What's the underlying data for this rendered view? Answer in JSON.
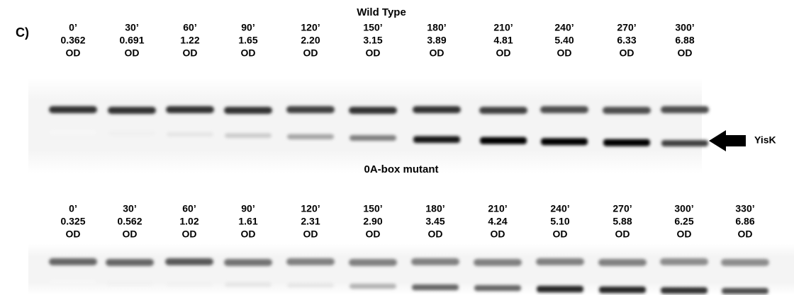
{
  "panel_label": "C)",
  "arrow_label": "YisK",
  "blots": [
    {
      "title": "Wild Type",
      "lanes": [
        {
          "time": "0’",
          "od": "0.362",
          "unit": "OD"
        },
        {
          "time": "30’",
          "od": "0.691",
          "unit": "OD"
        },
        {
          "time": "60’",
          "od": "1.22",
          "unit": "OD"
        },
        {
          "time": "90’",
          "od": "1.65",
          "unit": "OD"
        },
        {
          "time": "120’",
          "od": "2.20",
          "unit": "OD"
        },
        {
          "time": "150’",
          "od": "3.15",
          "unit": "OD"
        },
        {
          "time": "180’",
          "od": "3.89",
          "unit": "OD"
        },
        {
          "time": "210’",
          "od": "4.81",
          "unit": "OD"
        },
        {
          "time": "240’",
          "od": "5.40",
          "unit": "OD"
        },
        {
          "time": "270’",
          "od": "6.33",
          "unit": "OD"
        },
        {
          "time": "300’",
          "od": "6.88",
          "unit": "OD"
        }
      ]
    },
    {
      "title": "0A-box mutant",
      "lanes": [
        {
          "time": "0’",
          "od": "0.325",
          "unit": "OD"
        },
        {
          "time": "30’",
          "od": "0.562",
          "unit": "OD"
        },
        {
          "time": "60’",
          "od": "1.02",
          "unit": "OD"
        },
        {
          "time": "90’",
          "od": "1.61",
          "unit": "OD"
        },
        {
          "time": "120’",
          "od": "2.31",
          "unit": "OD"
        },
        {
          "time": "150’",
          "od": "2.90",
          "unit": "OD"
        },
        {
          "time": "180’",
          "od": "3.45",
          "unit": "OD"
        },
        {
          "time": "210’",
          "od": "4.24",
          "unit": "OD"
        },
        {
          "time": "240’",
          "od": "5.10",
          "unit": "OD"
        },
        {
          "time": "270’",
          "od": "5.88",
          "unit": "OD"
        },
        {
          "time": "300’",
          "od": "6.25",
          "unit": "OD"
        },
        {
          "time": "330’",
          "od": "6.86",
          "unit": "OD"
        }
      ]
    }
  ]
}
